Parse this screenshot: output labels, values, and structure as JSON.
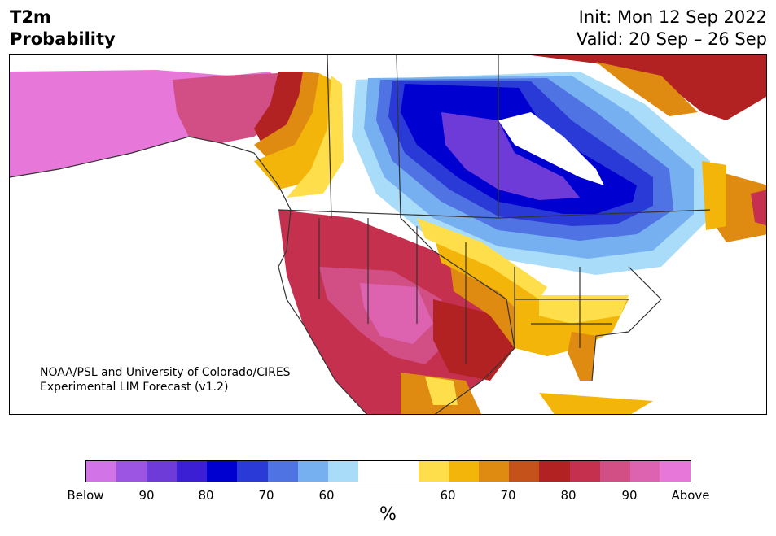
{
  "title": {
    "line1": "T2m",
    "line2": "Probability"
  },
  "init": {
    "line1": "Init: Mon 12 Sep 2022",
    "line2": "Valid: 20 Sep – 26 Sep"
  },
  "credit": {
    "line1": "NOAA/PSL and University of Colorado/CIRES",
    "line2": "Experimental LIM Forecast (v1.2)"
  },
  "colorbar": {
    "colors": [
      "#d273e8",
      "#9b55e2",
      "#6e3bd9",
      "#3a1fd4",
      "#0000d0",
      "#2a3ad6",
      "#4f73e3",
      "#76b0f0",
      "#a9dcf9",
      "#ffffff",
      "#ffffff",
      "#fede4a",
      "#f4b50a",
      "#df8a10",
      "#c4521a",
      "#b22222",
      "#c5304e",
      "#d24f86",
      "#dd63b1",
      "#e877da"
    ],
    "ticks": [
      "Below",
      "90",
      "80",
      "70",
      "60",
      "60",
      "70",
      "80",
      "90",
      "Above"
    ],
    "unit": "%"
  },
  "palette": {
    "above90": "#e877da",
    "above80": "#d24f86",
    "above70": "#b22222",
    "above65": "#df8a10",
    "above60": "#f4b50a",
    "above55": "#fede4a",
    "below55": "#a9dcf9",
    "below60": "#76b0f0",
    "below70": "#4f73e3",
    "below75": "#2a3ad6",
    "below80": "#0000d0",
    "below85": "#6e3bd9"
  }
}
